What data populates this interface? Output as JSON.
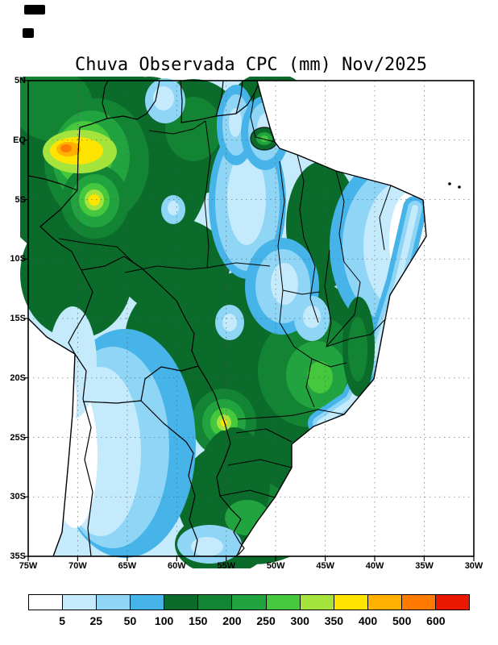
{
  "title": "Chuva Observada CPC (mm) Nov/2025",
  "chart_data": {
    "type": "heatmap",
    "title": "Chuva Observada CPC (mm) Nov/2025",
    "variable": "Chuva Observada (observed rainfall)",
    "source_label": "CPC",
    "units": "mm",
    "period": "Nov/2025",
    "region": "Brazil / South America",
    "grid": "dashed 5-degree lat/lon grid",
    "legend_position": "bottom",
    "x_axis": {
      "label": "longitude",
      "ticks": [
        "75W",
        "70W",
        "65W",
        "60W",
        "55W",
        "50W",
        "45W",
        "40W",
        "35W",
        "30W"
      ]
    },
    "y_axis": {
      "label": "latitude",
      "ticks": [
        "5N",
        "EQ",
        "5S",
        "10S",
        "15S",
        "20S",
        "25S",
        "30S",
        "35S"
      ]
    },
    "colorbar": {
      "orientation": "horizontal",
      "levels": [
        5,
        25,
        50,
        100,
        150,
        200,
        250,
        300,
        350,
        400,
        500,
        600
      ],
      "colors": [
        "#ffffff",
        "#c4eafb",
        "#8ed5f6",
        "#47b4e9",
        "#0b6b2b",
        "#138434",
        "#21a33f",
        "#46c83e",
        "#a4e43c",
        "#ffe400",
        "#ffb000",
        "#ff7a00",
        "#ea1800"
      ]
    },
    "map_regions": [
      {
        "area": "NW Amazon near 70W/EQ (Colombia-Brazil border)",
        "value_mm": "400-600 local maximum (yellow/orange core)"
      },
      {
        "area": "Western Amazon near 68W/5S",
        "value_mm": "350-400 secondary maximum"
      },
      {
        "area": "Most of central and southeastern Brazil",
        "value_mm": "100-250 (dark green)"
      },
      {
        "area": "Lower Amazon band 52-56W, EQ-10S",
        "value_mm": "5-50 (light blue dry band)"
      },
      {
        "area": "Northeast Brazil interior",
        "value_mm": "5-100 (blue), under 5 near coast (white)"
      },
      {
        "area": "East coast strip Salvador to Rio",
        "value_mm": "25-100 (blue strip)"
      },
      {
        "area": "Amapa near 52W/EQ",
        "value_mm": "localized heavy rain cell (200-300)"
      },
      {
        "area": "Parana/Paraguay near 55W/24S",
        "value_mm": "300-400 local maximum"
      },
      {
        "area": "Far west / lee of Andes and SW corner",
        "value_mm": "under 5 to 50 (white/pale blue)"
      }
    ]
  }
}
